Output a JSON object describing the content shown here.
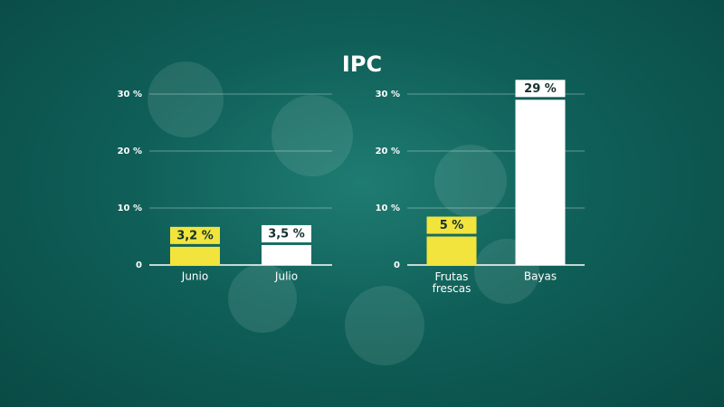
{
  "title": "IPC",
  "chart_data": [
    {
      "type": "bar",
      "categories": [
        "Junio",
        "Julio"
      ],
      "values": [
        3.2,
        3.5
      ],
      "value_labels": [
        "3,2 %",
        "3,5 %"
      ],
      "colors": [
        "#f2e43c",
        "#ffffff"
      ],
      "ylim": [
        0,
        30
      ],
      "yticks": [
        0,
        {
          "value": 10,
          "label": "10 %"
        },
        {
          "value": 20,
          "label": "20 %"
        },
        {
          "value": 30,
          "label": "30 %"
        }
      ],
      "grid": true
    },
    {
      "type": "bar",
      "categories": [
        "Frutas frescas",
        "Bayas"
      ],
      "values": [
        5,
        29
      ],
      "value_labels": [
        "5 %",
        "29 %"
      ],
      "colors": [
        "#f2e43c",
        "#ffffff"
      ],
      "ylim": [
        0,
        30
      ],
      "yticks": [
        0,
        {
          "value": 10,
          "label": "10 %"
        },
        {
          "value": 20,
          "label": "20 %"
        },
        {
          "value": 30,
          "label": "30 %"
        }
      ],
      "grid": true
    }
  ]
}
